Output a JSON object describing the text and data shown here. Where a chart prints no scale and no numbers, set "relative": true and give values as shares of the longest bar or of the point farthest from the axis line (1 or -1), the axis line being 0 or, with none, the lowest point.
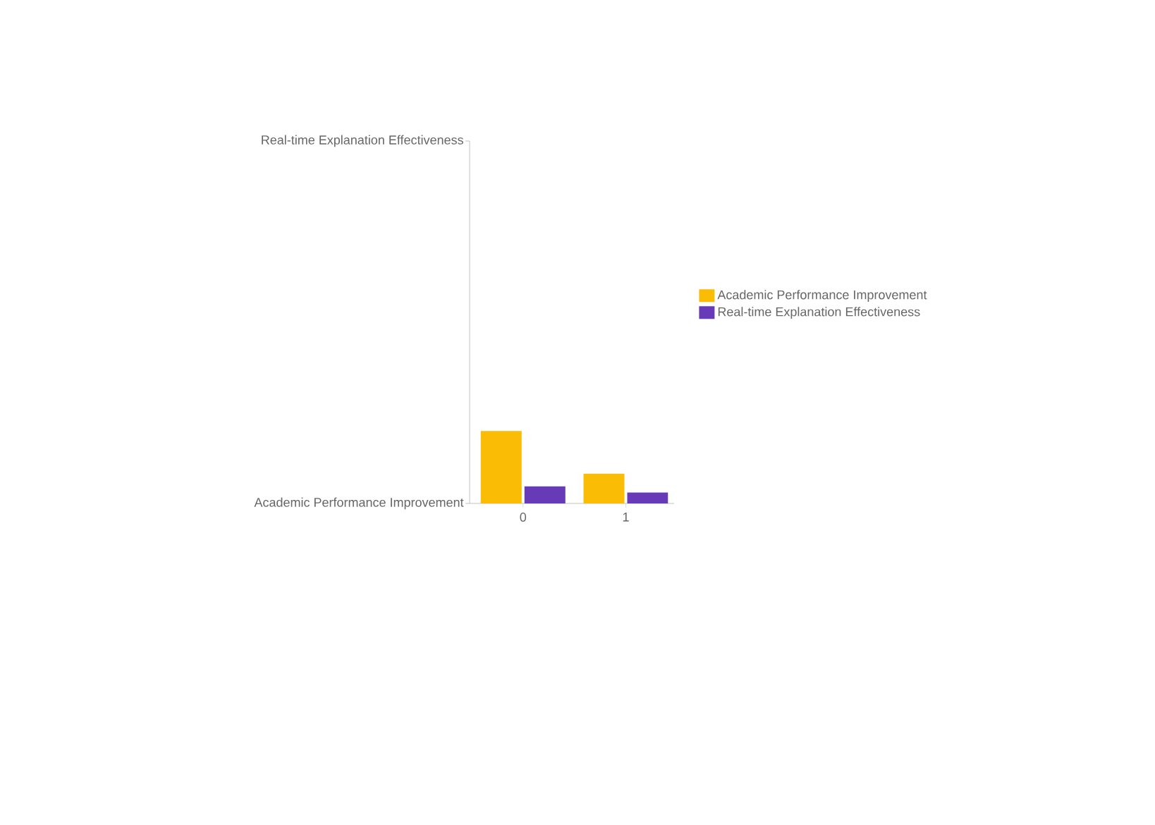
{
  "chart_data": {
    "type": "bar",
    "categories": [
      "0",
      "1"
    ],
    "series": [
      {
        "name": "Academic Performance Improvement",
        "color": "#fbbc05",
        "values": [
          1,
          0.41
        ]
      },
      {
        "name": "Real-time Explanation Effectiveness",
        "color": "#673ab7",
        "values": [
          0.235,
          0.15
        ]
      }
    ],
    "relative": true,
    "annotations": [
      "Real-time Explanation Effectiveness",
      "Academic Performance Improvement"
    ],
    "legend": "right",
    "grid": false
  }
}
